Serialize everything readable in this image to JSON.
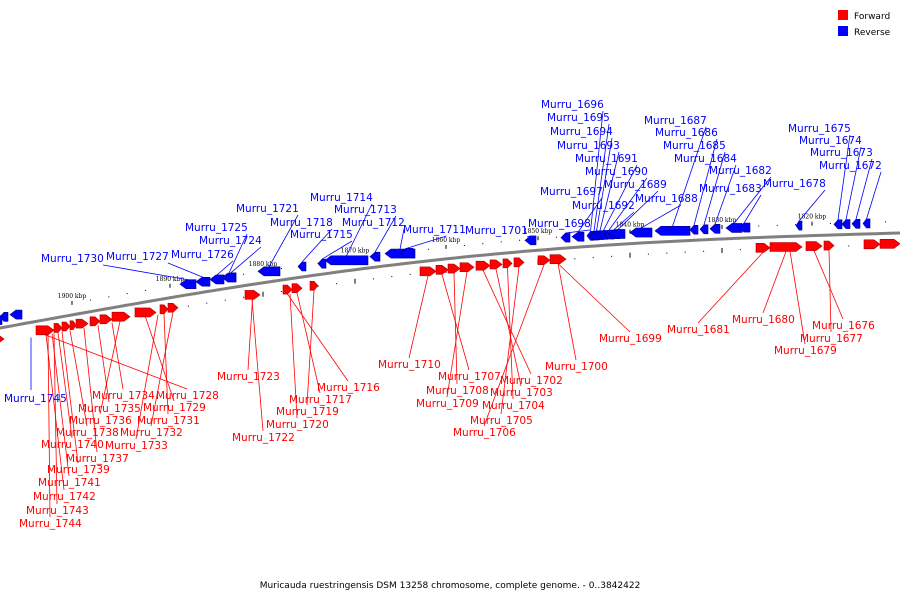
{
  "legend": [
    {
      "name": "Forward",
      "color": "#ff0000"
    },
    {
      "name": "Reverse",
      "color": "#0000ff"
    }
  ],
  "caption": "Muricauda ruestringensis DSM 13258 chromosome, complete genome. - 0..3842422",
  "colors": {
    "forward": "#ff0000",
    "forward_dark": "#aa0000",
    "reverse": "#0000ff",
    "reverse_dark": "#00008b",
    "backbone": "#808080"
  },
  "ticks": [
    "1900 kbp",
    "1890 kbp",
    "1880 kbp",
    "1870 kbp",
    "1860 kbp",
    "1850 kbp",
    "1840 kbp",
    "1830 kbp",
    "1820 kbp"
  ],
  "genes": {
    "reverse": [
      "Murru_1730",
      "Murru_1727",
      "Murru_1726",
      "Murru_1725",
      "Murru_1724",
      "Murru_1721",
      "Murru_1718",
      "Murru_1715",
      "Murru_1714",
      "Murru_1713",
      "Murru_1712",
      "Murru_1711",
      "Murru_1701",
      "Murru_1698",
      "Murru_1697",
      "Murru_1696",
      "Murru_1695",
      "Murru_1694",
      "Murru_1693",
      "Murru_1691",
      "Murru_1690",
      "Murru_1692",
      "Murru_1689",
      "Murru_1688",
      "Murru_1687",
      "Murru_1686",
      "Murru_1685",
      "Murru_1684",
      "Murru_1682",
      "Murru_1683",
      "Murru_1678",
      "Murru_1675",
      "Murru_1674",
      "Murru_1673",
      "Murru_1672",
      "Murru_1745"
    ],
    "forward": [
      "Murru_1734",
      "Murru_1735",
      "Murru_1736",
      "Murru_1738",
      "Murru_1740",
      "Murru_1737",
      "Murru_1739",
      "Murru_1741",
      "Murru_1742",
      "Murru_1743",
      "Murru_1744",
      "Murru_1728",
      "Murru_1729",
      "Murru_1731",
      "Murru_1732",
      "Murru_1733",
      "Murru_1723",
      "Murru_1722",
      "Murru_1716",
      "Murru_1717",
      "Murru_1719",
      "Murru_1720",
      "Murru_1710",
      "Murru_1707",
      "Murru_1708",
      "Murru_1709",
      "Murru_1702",
      "Murru_1703",
      "Murru_1704",
      "Murru_1705",
      "Murru_1706",
      "Murru_1700",
      "Murru_1699",
      "Murru_1681",
      "Murru_1680",
      "Murru_1676",
      "Murru_1677",
      "Murru_1679"
    ]
  }
}
